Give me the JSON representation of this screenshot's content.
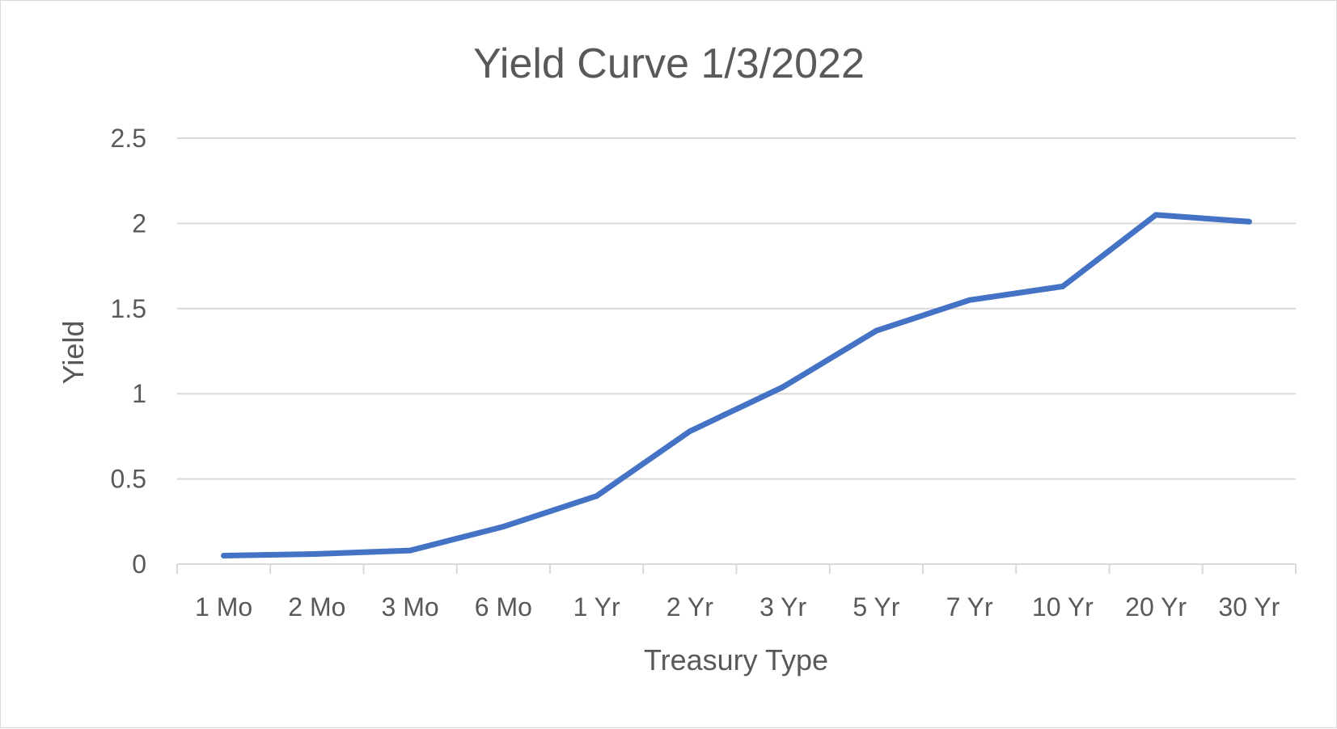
{
  "chart_data": {
    "type": "line",
    "title": "Yield Curve 1/3/2022",
    "xlabel": "Treasury Type",
    "ylabel": "Yield",
    "categories": [
      "1 Mo",
      "2 Mo",
      "3 Mo",
      "6 Mo",
      "1 Yr",
      "2 Yr",
      "3 Yr",
      "5 Yr",
      "7 Yr",
      "10 Yr",
      "20 Yr",
      "30 Yr"
    ],
    "series": [
      {
        "values": [
          0.05,
          0.06,
          0.08,
          0.22,
          0.4,
          0.78,
          1.04,
          1.37,
          1.55,
          1.63,
          2.05,
          2.01
        ]
      }
    ],
    "ylim": [
      0,
      2.5
    ],
    "yticks": [
      "0",
      "0.5",
      "1",
      "1.5",
      "2",
      "2.5"
    ],
    "grid": true,
    "legend": "none",
    "colors": {
      "line": "#4472c4",
      "grid": "#d9d9d9",
      "text": "#595959"
    }
  }
}
